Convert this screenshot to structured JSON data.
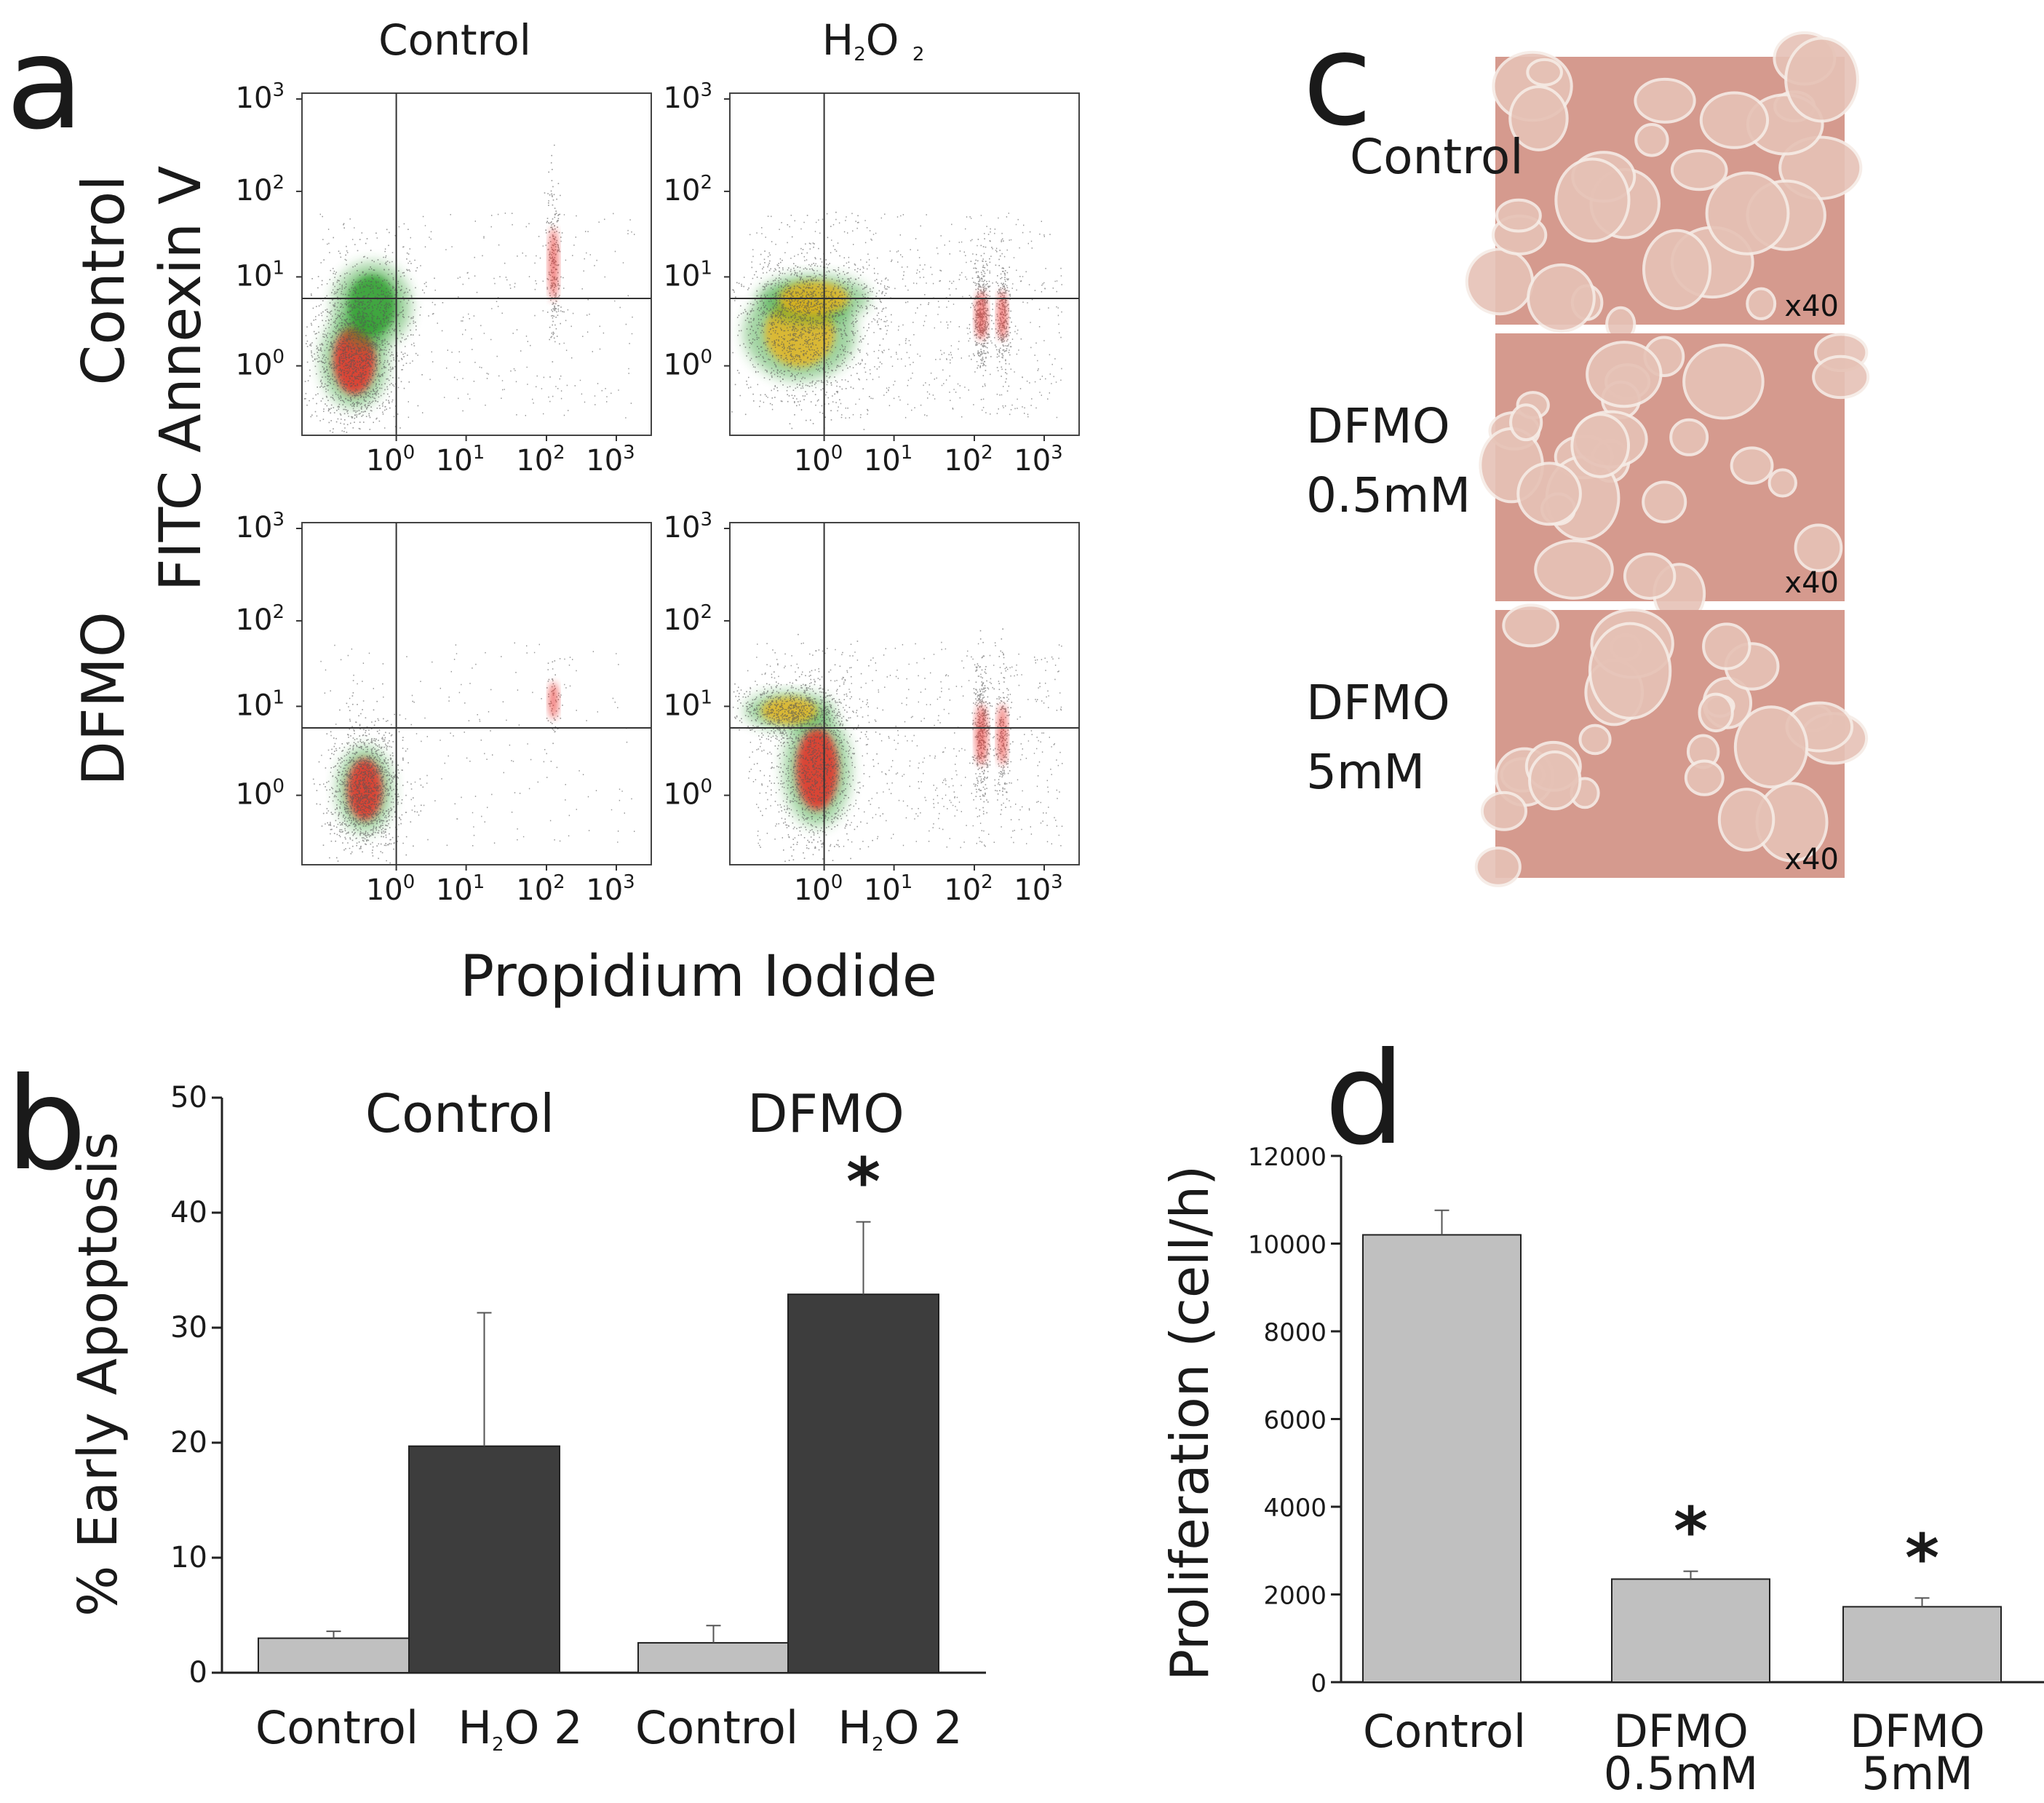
{
  "panels": {
    "a": {
      "letter": "a",
      "col_titles": [
        "Control",
        "H2O 2"
      ],
      "row_titles": [
        "Control",
        "DFMO"
      ],
      "ylabel": "FITC Annexin V",
      "xlabel": "Propidium Iodide",
      "x_ticks": [
        {
          "base": "10",
          "exp": "0"
        },
        {
          "base": "10",
          "exp": "1"
        },
        {
          "base": "10",
          "exp": "2"
        },
        {
          "base": "10",
          "exp": "3"
        }
      ],
      "y_ticks": [
        {
          "base": "10",
          "exp": "3"
        },
        {
          "base": "10",
          "exp": "2"
        },
        {
          "base": "10",
          "exp": "1"
        },
        {
          "base": "10",
          "exp": "0"
        }
      ],
      "plots": [
        {
          "name": "control-control",
          "row": "Control",
          "col": "Control"
        },
        {
          "name": "control-h2o2",
          "row": "Control",
          "col": "H2O 2"
        },
        {
          "name": "dfmo-control",
          "row": "DFMO",
          "col": "Control"
        },
        {
          "name": "dfmo-h2o2",
          "row": "DFMO",
          "col": "H2O 2"
        }
      ],
      "colors": {
        "dots": "#555555",
        "hot": "#e8201a",
        "mid": "#e8b21a",
        "cool": "#2c9c2c"
      }
    },
    "c": {
      "letter": "c",
      "images": [
        {
          "label_lines": [
            "Control"
          ],
          "magnification": "x40"
        },
        {
          "label_lines": [
            "DFMO",
            "0.5mM"
          ],
          "magnification": "x40"
        },
        {
          "label_lines": [
            "DFMO",
            "5mM"
          ],
          "magnification": "x40"
        }
      ],
      "colors": {
        "background": "#d59a8e",
        "cell": "#e6c2b6",
        "edge": "#f6ece6"
      }
    }
  },
  "chart_data": [
    {
      "panel": "b",
      "letter": "b",
      "type": "bar",
      "title": "",
      "ylabel": "% Early Apoptosis",
      "xlabel": "",
      "groups": [
        "Control",
        "DFMO"
      ],
      "categories": [
        "Control",
        "H2O 2",
        "Control",
        "H2O 2"
      ],
      "category_parts": [
        {
          "main": "Control",
          "sub": ""
        },
        {
          "main": "H",
          "sub": "2",
          "tail": "O 2"
        },
        {
          "main": "Control",
          "sub": ""
        },
        {
          "main": "H",
          "sub": "2",
          "tail": "O 2"
        }
      ],
      "values": [
        3.0,
        19.7,
        2.6,
        32.9
      ],
      "errors": [
        0.6,
        11.6,
        1.5,
        6.3
      ],
      "bar_colors": [
        "#c0c0c0",
        "#3d3d3d",
        "#c0c0c0",
        "#3d3d3d"
      ],
      "significance": [
        "",
        "",
        "",
        "*"
      ],
      "ylim": [
        0,
        50
      ],
      "yticks": [
        0,
        10,
        20,
        30,
        40,
        50
      ]
    },
    {
      "panel": "d",
      "letter": "d",
      "type": "bar",
      "title": "",
      "ylabel": "Proliferation (cell/h)",
      "xlabel": "",
      "categories": [
        "Control",
        "DFMO 0.5mM",
        "DFMO 5mM"
      ],
      "category_lines": [
        [
          "Control"
        ],
        [
          "DFMO",
          "0.5mM"
        ],
        [
          "DFMO",
          "5mM"
        ]
      ],
      "values": [
        10200,
        2350,
        1720
      ],
      "errors": [
        560,
        180,
        200
      ],
      "bar_colors": [
        "#c0c0c0",
        "#c0c0c0",
        "#c0c0c0"
      ],
      "significance": [
        "",
        "*",
        "*"
      ],
      "ylim": [
        0,
        12000
      ],
      "yticks": [
        0,
        2000,
        4000,
        6000,
        8000,
        10000,
        12000
      ]
    }
  ]
}
